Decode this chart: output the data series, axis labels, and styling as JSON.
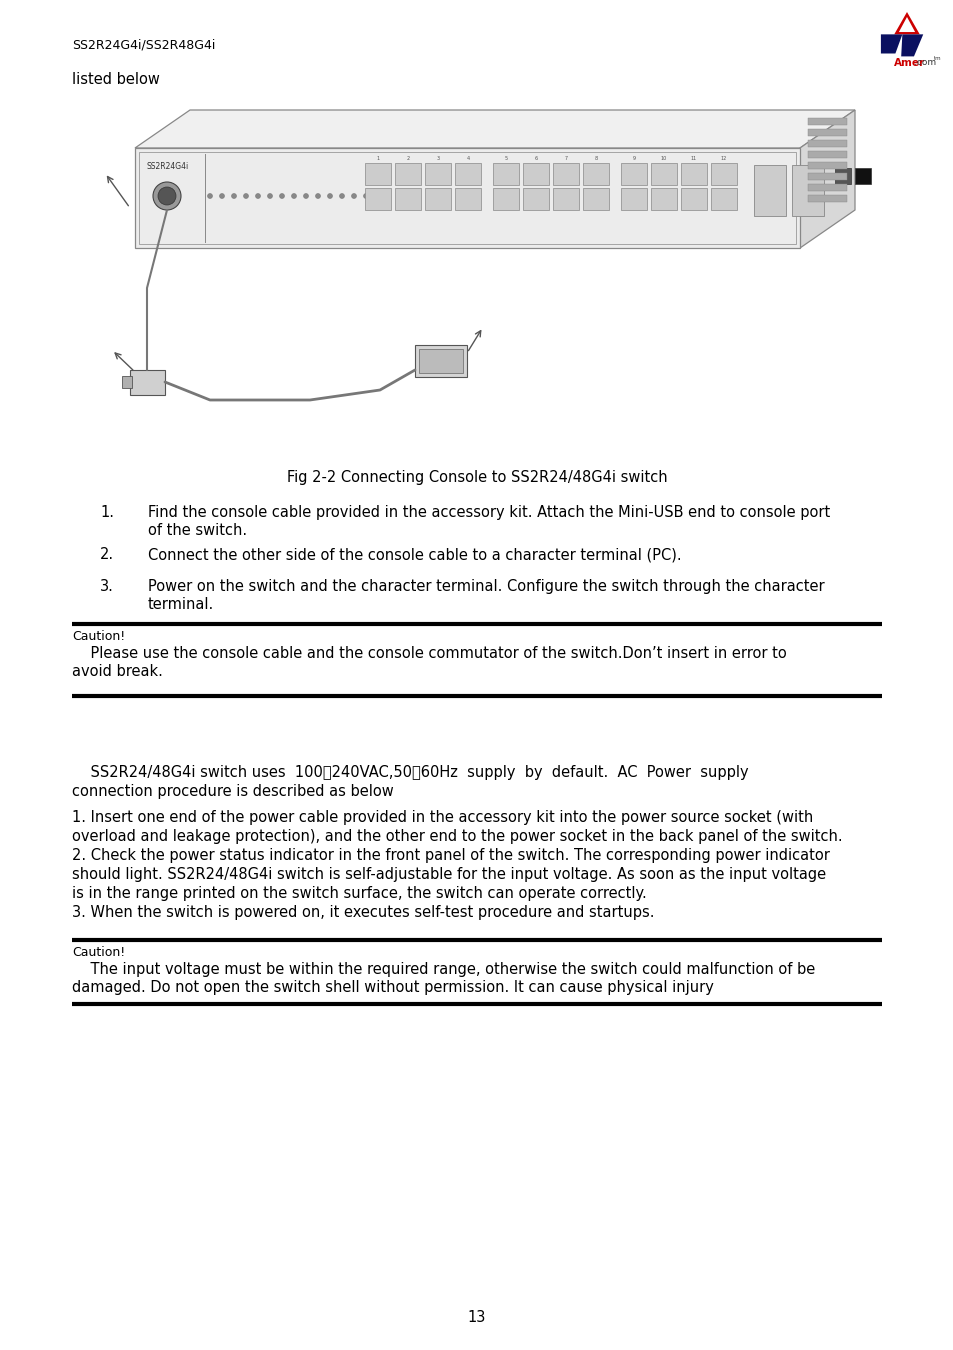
{
  "page_header_left": "SS2R24G4i/SS2R48G4i",
  "text_listed_below": "listed below",
  "fig_caption": "Fig 2-2 Connecting Console to SS2R24/48G4i switch",
  "list_items": [
    "Find the console cable provided in the accessory kit. Attach the Mini-USB end to console port\nof the switch.",
    "Connect the other side of the console cable to a character terminal (PC).",
    "Power on the switch and the character terminal. Configure the switch through the character\nterminal."
  ],
  "caution1_title": "Caution!",
  "caution1_body_line1": "    Please use the console cable and the console commutator of the switch.Don’t insert in error to",
  "caution1_body_line2": "avoid break.",
  "intro_line1": "    SS2R24/48G4i switch uses  100～240VAC,50～60Hz  supply  by  default.  AC  Power  supply",
  "intro_line2": "connection procedure is described as below",
  "num_para_lines": [
    "1. Insert one end of the power cable provided in the accessory kit into the power source socket (with",
    "overload and leakage protection), and the other end to the power socket in the back panel of the switch.",
    "2. Check the power status indicator in the front panel of the switch. The corresponding power indicator",
    "should light. SS2R24/48G4i switch is self-adjustable for the input voltage. As soon as the input voltage",
    "is in the range printed on the switch surface, the switch can operate correctly.",
    "3. When the switch is powered on, it executes self-test procedure and startups."
  ],
  "caution2_title": "Caution!",
  "caution2_body_line1": "    The input voltage must be within the required range, otherwise the switch could malfunction of be",
  "caution2_body_line2": "damaged. Do not open the switch shell without permission. It can cause physical injury",
  "page_number": "13",
  "bg_color": "#ffffff",
  "text_color": "#000000"
}
